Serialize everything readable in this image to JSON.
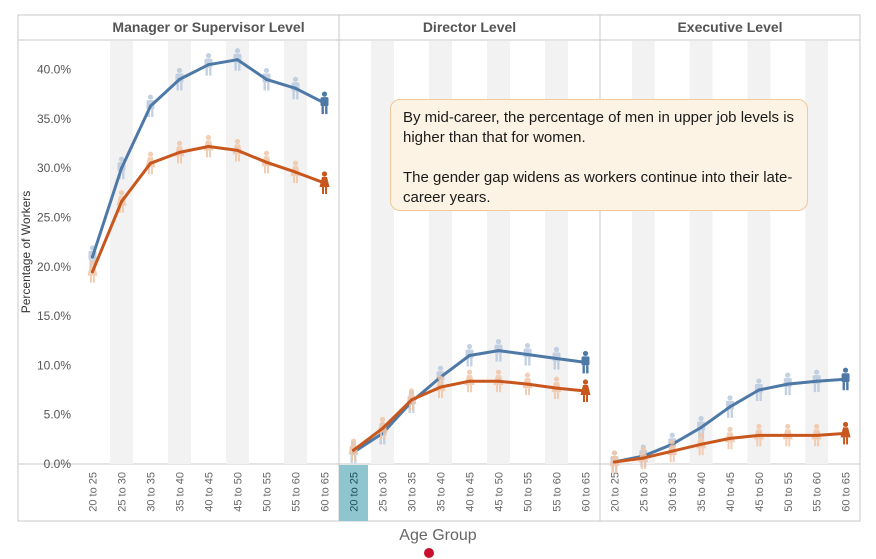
{
  "chart_data": {
    "type": "line",
    "ylabel": "Percentage of Workers",
    "xlabel": "Age Group",
    "ylim": [
      0,
      0.43
    ],
    "yticks": [
      "0.0%",
      "5.0%",
      "10.0%",
      "15.0%",
      "20.0%",
      "25.0%",
      "30.0%",
      "35.0%",
      "40.0%"
    ],
    "categories": [
      "20 to 25",
      "25 to 30",
      "30 to 35",
      "35 to 40",
      "40 to 45",
      "45 to 50",
      "50 to 55",
      "55 to 60",
      "60 to 65"
    ],
    "highlighted_category": {
      "panel": 1,
      "index": 0
    },
    "colors": {
      "men": "#4e79a7",
      "women": "#c8571e",
      "men_icon_faded": "#b9c9dd",
      "women_icon_faded": "#f0c6a8",
      "highlight": "#8ec5cf",
      "stripe": "#f2f2f2"
    },
    "panels": [
      {
        "title": "Manager or Supervisor Level",
        "series": [
          {
            "icon": "man-icon",
            "values": [
              0.21,
              0.3,
              0.363,
              0.39,
              0.405,
              0.41,
              0.39,
              0.381,
              0.366
            ]
          },
          {
            "icon": "woman-icon",
            "values": [
              0.195,
              0.266,
              0.305,
              0.316,
              0.322,
              0.318,
              0.306,
              0.296,
              0.285
            ]
          }
        ]
      },
      {
        "title": "Director Level",
        "series": [
          {
            "icon": "man-icon",
            "values": [
              0.012,
              0.031,
              0.063,
              0.088,
              0.11,
              0.115,
              0.111,
              0.107,
              0.103
            ]
          },
          {
            "icon": "woman-icon",
            "values": [
              0.014,
              0.036,
              0.065,
              0.078,
              0.084,
              0.084,
              0.081,
              0.077,
              0.074
            ]
          }
        ]
      },
      {
        "title": "Executive Level",
        "series": [
          {
            "icon": "man-icon",
            "values": [
              0.002,
              0.008,
              0.02,
              0.037,
              0.058,
              0.075,
              0.081,
              0.084,
              0.086
            ]
          },
          {
            "icon": "woman-icon",
            "values": [
              0.002,
              0.006,
              0.013,
              0.02,
              0.026,
              0.029,
              0.029,
              0.029,
              0.031
            ]
          }
        ]
      }
    ]
  },
  "annotation": {
    "line1": "By mid-career, the percentage of men in upper job levels is higher than that for women.",
    "line2": "The gender gap widens as workers continue into their late-career years."
  }
}
